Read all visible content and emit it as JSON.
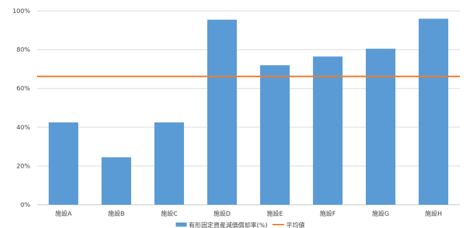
{
  "chart_data": {
    "type": "bar",
    "categories": [
      "施設A",
      "施設B",
      "施設C",
      "施設D",
      "施設E",
      "施設F",
      "施設G",
      "施設H"
    ],
    "series": [
      {
        "name": "有形固定資産減価償却率(%)",
        "type": "bar",
        "color": "#5b9bd5",
        "values": [
          42.5,
          24.5,
          42.5,
          95.5,
          72,
          76.5,
          80.5,
          96
        ]
      },
      {
        "name": "平均値",
        "type": "line",
        "color": "#ed7d31",
        "values": [
          66.2,
          66.2,
          66.2,
          66.2,
          66.2,
          66.2,
          66.2,
          66.2
        ]
      }
    ],
    "ylim": [
      0,
      100
    ],
    "y_ticks": [
      "0%",
      "20%",
      "40%",
      "60%",
      "80%",
      "100%"
    ],
    "grid": true,
    "legend_position": "bottom"
  }
}
